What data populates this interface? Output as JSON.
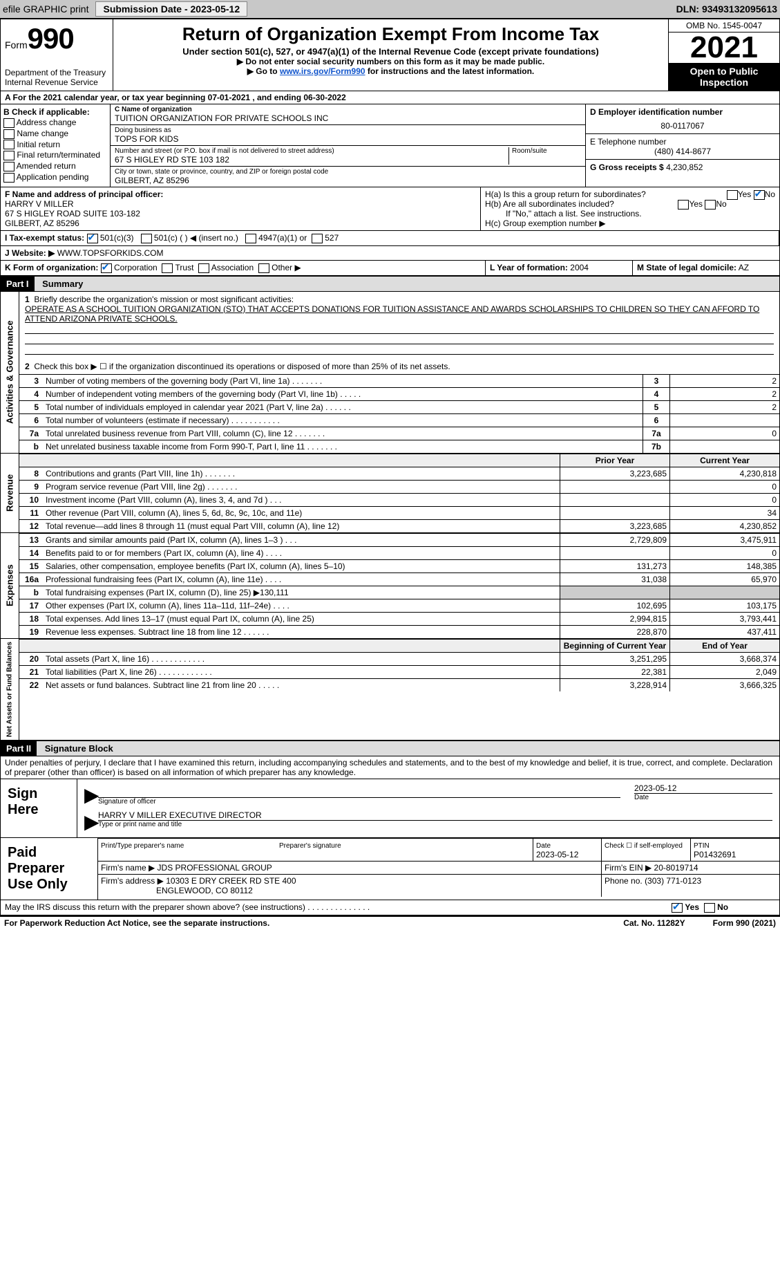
{
  "topbar": {
    "efile": "efile GRAPHIC print",
    "submission_label": "Submission Date - 2023-05-12",
    "dln": "DLN: 93493132095613"
  },
  "header": {
    "form_word": "Form",
    "form_num": "990",
    "dept": "Department of the Treasury",
    "irs": "Internal Revenue Service",
    "title": "Return of Organization Exempt From Income Tax",
    "subtitle": "Under section 501(c), 527, or 4947(a)(1) of the Internal Revenue Code (except private foundations)",
    "note1": "▶ Do not enter social security numbers on this form as it may be made public.",
    "note2_pre": "▶ Go to ",
    "note2_link": "www.irs.gov/Form990",
    "note2_post": " for instructions and the latest information.",
    "omb": "OMB No. 1545-0047",
    "year": "2021",
    "open": "Open to Public Inspection"
  },
  "rowA": "A For the 2021 calendar year, or tax year beginning 07-01-2021    , and ending 06-30-2022",
  "boxB": {
    "title": "B Check if applicable:",
    "opts": [
      "Address change",
      "Name change",
      "Initial return",
      "Final return/terminated",
      "Amended return",
      "Application pending"
    ]
  },
  "boxC": {
    "name_lbl": "C Name of organization",
    "name": "TUITION ORGANIZATION FOR PRIVATE SCHOOLS INC",
    "dba_lbl": "Doing business as",
    "dba": "TOPS FOR KIDS",
    "addr_lbl": "Number and street (or P.O. box if mail is not delivered to street address)",
    "room_lbl": "Room/suite",
    "addr": "67 S HIGLEY RD STE 103 182",
    "city_lbl": "City or town, state or province, country, and ZIP or foreign postal code",
    "city": "GILBERT, AZ  85296"
  },
  "boxD": {
    "lbl": "D Employer identification number",
    "val": "80-0117067"
  },
  "boxE": {
    "lbl": "E Telephone number",
    "val": "(480) 414-8677"
  },
  "boxG": {
    "lbl": "G Gross receipts $",
    "val": "4,230,852"
  },
  "boxF": {
    "lbl": "F Name and address of principal officer:",
    "name": "HARRY V MILLER",
    "addr1": "67 S HIGLEY ROAD SUITE 103-182",
    "addr2": "GILBERT, AZ  85296"
  },
  "boxH": {
    "ha": "H(a)  Is this a group return for subordinates?",
    "hb": "H(b)  Are all subordinates included?",
    "hb_note": "If \"No,\" attach a list. See instructions.",
    "hc": "H(c)  Group exemption number ▶"
  },
  "rowI": {
    "lbl": "I   Tax-exempt status:",
    "o1": "501(c)(3)",
    "o2": "501(c) (    ) ◀ (insert no.)",
    "o3": "4947(a)(1) or",
    "o4": "527"
  },
  "rowJ": {
    "lbl": "J   Website: ▶",
    "val": "WWW.TOPSFORKIDS.COM"
  },
  "rowK": {
    "lbl": "K Form of organization:",
    "o1": "Corporation",
    "o2": "Trust",
    "o3": "Association",
    "o4": "Other ▶"
  },
  "rowL": {
    "lbl": "L Year of formation:",
    "val": "2004"
  },
  "rowM": {
    "lbl": "M State of legal domicile:",
    "val": "AZ"
  },
  "part1": {
    "hdr": "Part I",
    "title": "Summary",
    "line1_lbl": "Briefly describe the organization's mission or most significant activities:",
    "line1_text": "OPERATE AS A SCHOOL TUITION ORGANIZATION (STO) THAT ACCEPTS DONATIONS FOR TUITION ASSISTANCE AND AWARDS SCHOLARSHIPS TO CHILDREN SO THEY CAN AFFORD TO ATTEND ARIZONA PRIVATE SCHOOLS.",
    "line2": "Check this box ▶ ☐  if the organization discontinued its operations or disposed of more than 25% of its net assets.",
    "tabs": {
      "gov": "Activities & Governance",
      "rev": "Revenue",
      "exp": "Expenses",
      "net": "Net Assets or Fund Balances"
    },
    "col_prior": "Prior Year",
    "col_curr": "Current Year",
    "col_beg": "Beginning of Current Year",
    "col_end": "End of Year",
    "lines_gov": [
      {
        "n": "3",
        "t": "Number of voting members of the governing body (Part VI, line 1a)   .    .    .    .    .    .    .",
        "box": "3",
        "v": "2"
      },
      {
        "n": "4",
        "t": "Number of independent voting members of the governing body (Part VI, line 1b)   .    .    .    .    .",
        "box": "4",
        "v": "2"
      },
      {
        "n": "5",
        "t": "Total number of individuals employed in calendar year 2021 (Part V, line 2a)   .    .    .    .    .    .",
        "box": "5",
        "v": "2"
      },
      {
        "n": "6",
        "t": "Total number of volunteers (estimate if necessary)    .    .    .    .    .    .    .    .    .    .    .",
        "box": "6",
        "v": ""
      },
      {
        "n": "7a",
        "t": "Total unrelated business revenue from Part VIII, column (C), line 12   .    .    .    .    .    .    .",
        "box": "7a",
        "v": "0"
      },
      {
        "n": "b",
        "t": "Net unrelated business taxable income from Form 990-T, Part I, line 11   .    .    .    .    .    .    .",
        "box": "7b",
        "v": ""
      }
    ],
    "lines_rev": [
      {
        "n": "8",
        "t": "Contributions and grants (Part VIII, line 1h)    .    .    .    .    .    .    .",
        "p": "3,223,685",
        "c": "4,230,818"
      },
      {
        "n": "9",
        "t": "Program service revenue (Part VIII, line 2g)    .    .    .    .    .    .    .",
        "p": "",
        "c": "0"
      },
      {
        "n": "10",
        "t": "Investment income (Part VIII, column (A), lines 3, 4, and 7d )    .    .    .",
        "p": "",
        "c": "0"
      },
      {
        "n": "11",
        "t": "Other revenue (Part VIII, column (A), lines 5, 6d, 8c, 9c, 10c, and 11e)",
        "p": "",
        "c": "34"
      },
      {
        "n": "12",
        "t": "Total revenue—add lines 8 through 11 (must equal Part VIII, column (A), line 12)",
        "p": "3,223,685",
        "c": "4,230,852"
      }
    ],
    "lines_exp": [
      {
        "n": "13",
        "t": "Grants and similar amounts paid (Part IX, column (A), lines 1–3 )   .    .    .",
        "p": "2,729,809",
        "c": "3,475,911"
      },
      {
        "n": "14",
        "t": "Benefits paid to or for members (Part IX, column (A), line 4)    .    .    .    .",
        "p": "",
        "c": "0"
      },
      {
        "n": "15",
        "t": "Salaries, other compensation, employee benefits (Part IX, column (A), lines 5–10)",
        "p": "131,273",
        "c": "148,385"
      },
      {
        "n": "16a",
        "t": "Professional fundraising fees (Part IX, column (A), line 11e)    .    .    .    .",
        "p": "31,038",
        "c": "65,970"
      },
      {
        "n": "b",
        "t": "Total fundraising expenses (Part IX, column (D), line 25) ▶130,111",
        "p": "SHADE",
        "c": "SHADE"
      },
      {
        "n": "17",
        "t": "Other expenses (Part IX, column (A), lines 11a–11d, 11f–24e)   .    .    .    .",
        "p": "102,695",
        "c": "103,175"
      },
      {
        "n": "18",
        "t": "Total expenses. Add lines 13–17 (must equal Part IX, column (A), line 25)",
        "p": "2,994,815",
        "c": "3,793,441"
      },
      {
        "n": "19",
        "t": "Revenue less expenses. Subtract line 18 from line 12   .    .    .    .    .    .",
        "p": "228,870",
        "c": "437,411"
      }
    ],
    "lines_net": [
      {
        "n": "20",
        "t": "Total assets (Part X, line 16)   .    .    .    .    .    .    .    .    .    .    .    .",
        "p": "3,251,295",
        "c": "3,668,374"
      },
      {
        "n": "21",
        "t": "Total liabilities (Part X, line 26)   .    .    .    .    .    .    .    .    .    .    .    .",
        "p": "22,381",
        "c": "2,049"
      },
      {
        "n": "22",
        "t": "Net assets or fund balances. Subtract line 21 from line 20   .    .    .    .    .",
        "p": "3,228,914",
        "c": "3,666,325"
      }
    ]
  },
  "part2": {
    "hdr": "Part II",
    "title": "Signature Block",
    "decl": "Under penalties of perjury, I declare that I have examined this return, including accompanying schedules and statements, and to the best of my knowledge and belief, it is true, correct, and complete. Declaration of preparer (other than officer) is based on all information of which preparer has any knowledge."
  },
  "sign": {
    "lbl": "Sign Here",
    "sig_lbl": "Signature of officer",
    "date_lbl": "Date",
    "date": "2023-05-12",
    "name": "HARRY V MILLER  EXECUTIVE DIRECTOR",
    "name_lbl": "Type or print name and title"
  },
  "paid": {
    "lbl": "Paid Preparer Use Only",
    "h1": "Print/Type preparer's name",
    "h2": "Preparer's signature",
    "h3": "Date",
    "h3v": "2023-05-12",
    "h4": "Check ☐ if self-employed",
    "h5": "PTIN",
    "h5v": "P01432691",
    "firm_lbl": "Firm's name      ▶",
    "firm": "JDS PROFESSIONAL GROUP",
    "ein_lbl": "Firm's EIN ▶",
    "ein": "20-8019714",
    "addr_lbl": "Firm's address ▶",
    "addr1": "10303 E DRY CREEK RD STE 400",
    "addr2": "ENGLEWOOD, CO  80112",
    "phone_lbl": "Phone no.",
    "phone": "(303) 771-0123"
  },
  "discuss": "May the IRS discuss this return with the preparer shown above? (see instructions)    .    .    .    .    .    .    .    .    .    .    .    .    .    .",
  "footer": {
    "l": "For Paperwork Reduction Act Notice, see the separate instructions.",
    "m": "Cat. No. 11282Y",
    "r": "Form 990 (2021)"
  },
  "yesno": {
    "yes": "Yes",
    "no": "No"
  }
}
